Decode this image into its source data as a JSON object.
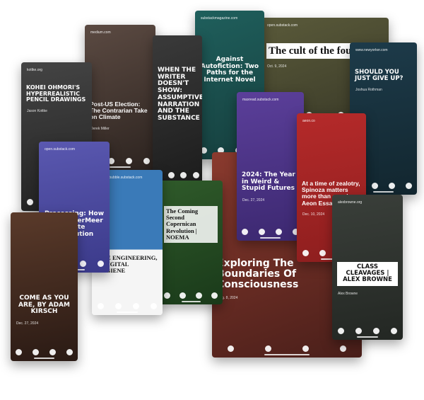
{
  "cards": [
    {
      "title": "The cult of the founders",
      "source": "open.substack.com",
      "meta": "Oct. 9, 2024"
    },
    {
      "title": "Against Autofiction: Two Paths for the Internet Novel",
      "source": "substackmagazine.com"
    },
    {
      "title": "Post-US Election: The Contrarian Take on Climate",
      "source": "medium.com",
      "meta": "Derek Miller"
    },
    {
      "title": "WHEN THE WRITER DOESN'T SHOW: ASSUMPTIVE NARRATION AND THE SUBSTANCE"
    },
    {
      "title": "KOHEI OHMORI'S HYPERREALISTIC PENCIL DRAWINGS",
      "source": "kottke.org",
      "meta": "Jason Kottke"
    },
    {
      "title": "SHOULD YOU JUST GIVE UP?",
      "source": "www.newyorker.com",
      "meta": "Joshua Rothman"
    },
    {
      "title": "Exploring The Boundaries Of Consciousness",
      "meta": "Aug. 8, 2024"
    },
    {
      "title": "2024: The Year in Weird & Stupid Futures",
      "source": "maxread.substack.com",
      "meta": "Dec. 27, 2024"
    },
    {
      "title": "At a time of zealotry, Spinoza matters more than ever | Aeon Essays",
      "source": "aeon.co",
      "meta": "Dec. 10, 2024"
    },
    {
      "title": "CLASS CLEAVAGES | ALEX BROWNE",
      "source": "alexbrowne.org",
      "meta": "Alex Browne"
    },
    {
      "title": "The Coming Second Copernican Revolution | NOEMA"
    },
    {
      "title": "LIFE ENGINEERING, & DIGITAL HYGIENE",
      "source": "thetechbubble.substack.com"
    },
    {
      "title": "Processing: How Jeff VanderMeer Wrote Absolution",
      "source": "open.substack.com",
      "meta": "Oct. 15, 2024"
    },
    {
      "title": "COME AS YOU ARE, BY ADAM KIRSCH",
      "meta": "Dec. 27, 2024"
    }
  ]
}
